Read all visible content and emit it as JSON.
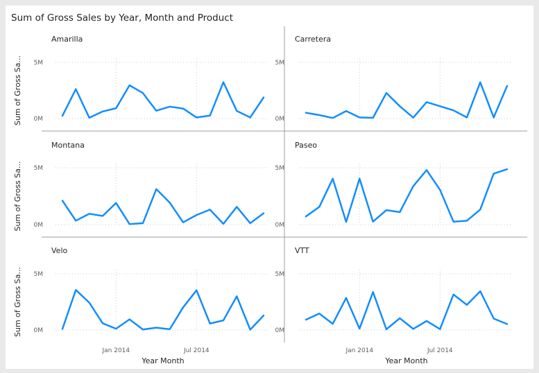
{
  "visual": {
    "title": "Sum of Gross Sales by Year, Month and Product"
  },
  "chart_data": {
    "type": "line",
    "title": "Sum of Gross Sales by Year, Month and Product",
    "xlabel": "Year Month",
    "ylabel": "Sum of Gross Sa...",
    "x": [
      "2013-09",
      "2013-10",
      "2013-11",
      "2013-12",
      "2014-01",
      "2014-02",
      "2014-03",
      "2014-04",
      "2014-05",
      "2014-06",
      "2014-07",
      "2014-08",
      "2014-09",
      "2014-10",
      "2014-11",
      "2014-12"
    ],
    "x_tick_labels": [
      "Jan 2014",
      "Jul 2014"
    ],
    "y_tick_labels": [
      "0M",
      "5M"
    ],
    "ylim": [
      0,
      5000000
    ],
    "grid": true,
    "series_color": "#118dff",
    "panels": [
      {
        "name": "Amarilla",
        "values": [
          240000,
          2620000,
          70000,
          630000,
          920000,
          2960000,
          2270000,
          700000,
          1060000,
          890000,
          100000,
          260000,
          3240000,
          680000,
          100000,
          1880000
        ]
      },
      {
        "name": "Carretera",
        "values": [
          520000,
          310000,
          50000,
          670000,
          100000,
          70000,
          2280000,
          1100000,
          80000,
          1460000,
          1100000,
          730000,
          100000,
          3230000,
          100000,
          2910000
        ]
      },
      {
        "name": "Montana",
        "values": [
          2110000,
          350000,
          960000,
          760000,
          1910000,
          50000,
          130000,
          3120000,
          1930000,
          200000,
          850000,
          1320000,
          70000,
          1570000,
          130000,
          1000000
        ]
      },
      {
        "name": "Paseo",
        "values": [
          720000,
          1560000,
          4040000,
          240000,
          4050000,
          260000,
          1280000,
          1100000,
          3380000,
          4800000,
          3060000,
          260000,
          340000,
          1330000,
          4490000,
          4870000
        ]
      },
      {
        "name": "Velo",
        "values": [
          90000,
          3570000,
          2440000,
          600000,
          120000,
          950000,
          50000,
          210000,
          70000,
          2020000,
          3540000,
          580000,
          860000,
          3000000,
          30000,
          1290000
        ]
      },
      {
        "name": "VTT",
        "values": [
          920000,
          1460000,
          550000,
          2860000,
          120000,
          3380000,
          60000,
          1050000,
          100000,
          800000,
          80000,
          3160000,
          2240000,
          3450000,
          1020000,
          530000
        ]
      }
    ]
  }
}
